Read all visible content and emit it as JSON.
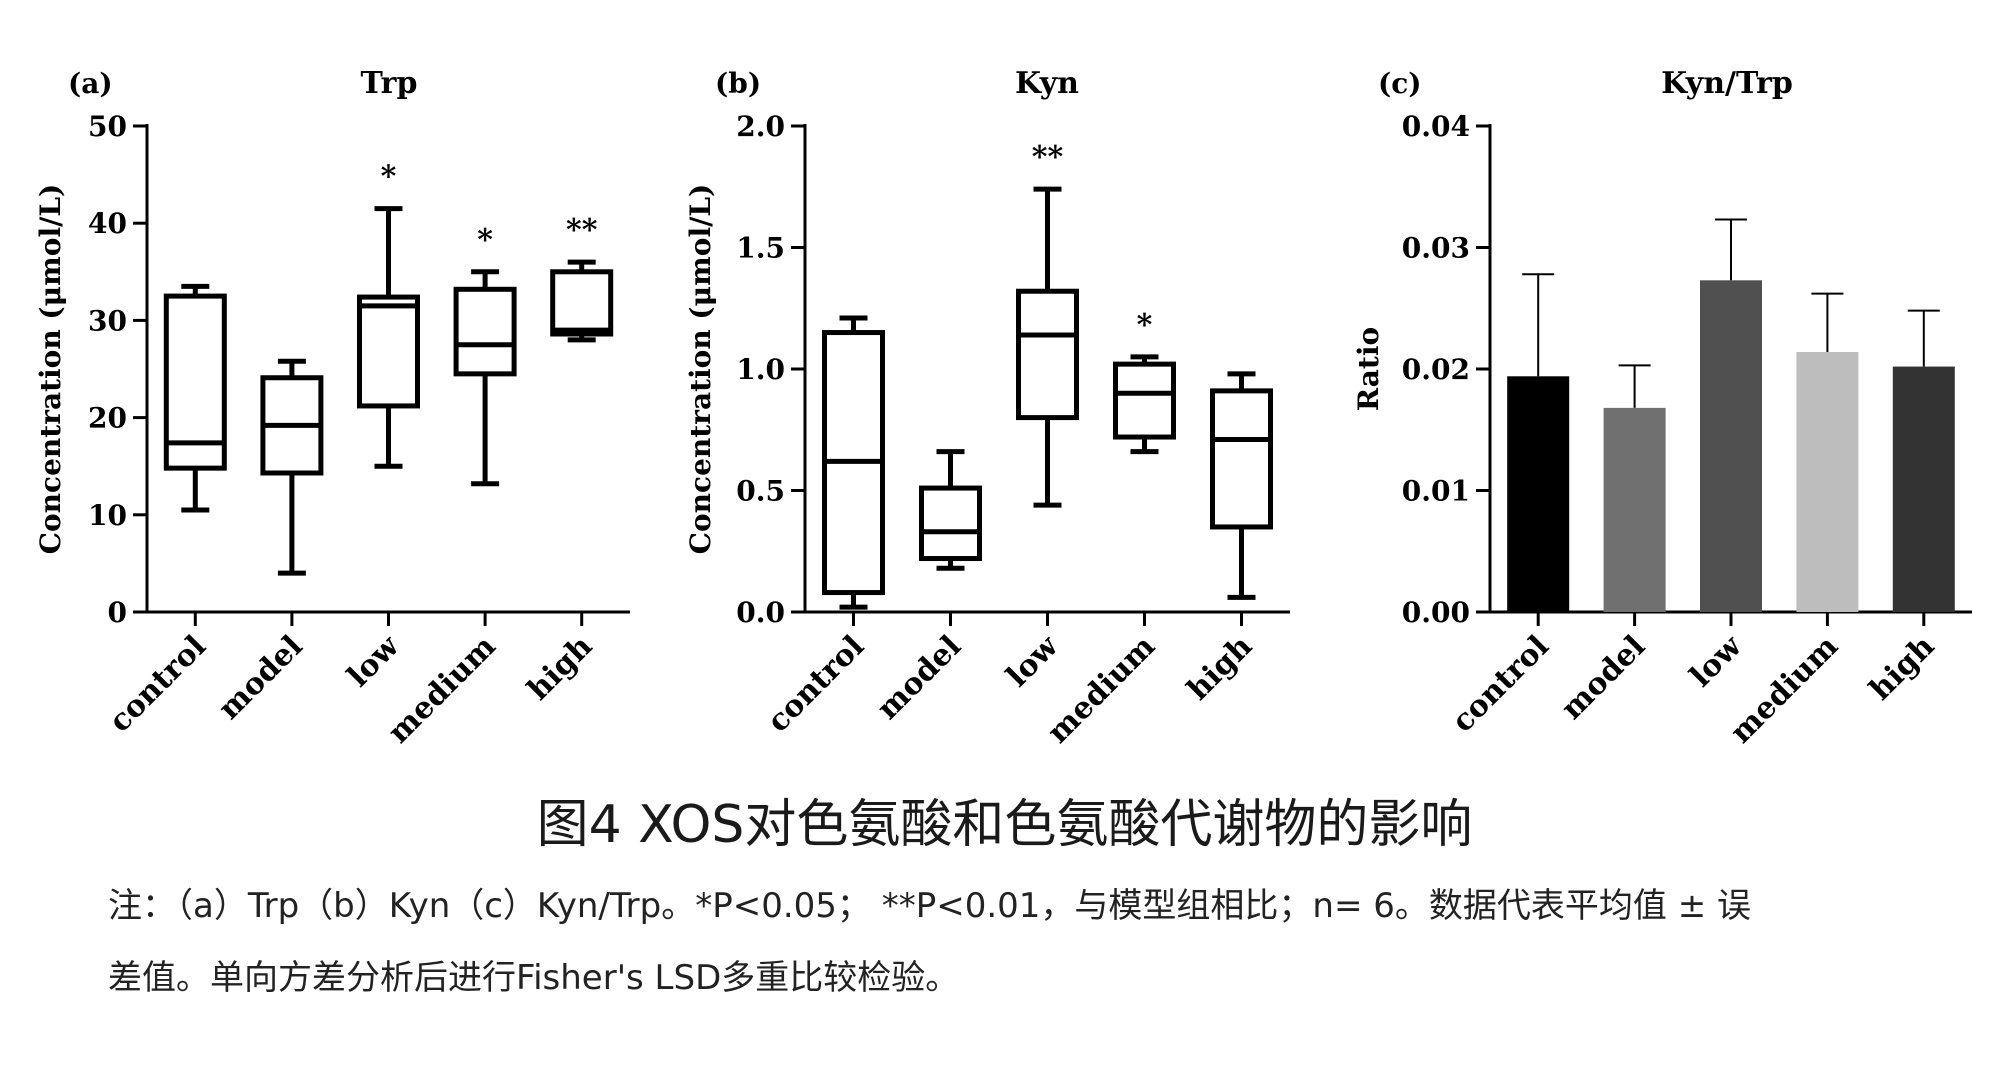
{
  "chart_data": [
    {
      "type": "box",
      "panel_label": "(a)",
      "title": "Trp",
      "ylabel": "Concentration (μmol/L)",
      "ylim": [
        0,
        50
      ],
      "yticks": [
        0,
        10,
        20,
        30,
        40,
        50
      ],
      "categories": [
        "control",
        "model",
        "low",
        "medium",
        "high"
      ],
      "boxes": [
        {
          "min": 10.5,
          "q1": 14.8,
          "median": 17.4,
          "q3": 32.5,
          "max": 33.5
        },
        {
          "min": 4.0,
          "q1": 14.3,
          "median": 19.2,
          "q3": 24.1,
          "max": 25.8
        },
        {
          "min": 15.0,
          "q1": 21.2,
          "median": 31.5,
          "q3": 32.4,
          "max": 41.5
        },
        {
          "min": 13.2,
          "q1": 24.5,
          "median": 27.5,
          "q3": 33.2,
          "max": 35.0
        },
        {
          "min": 28.0,
          "q1": 28.6,
          "median": 29.0,
          "q3": 35.0,
          "max": 36.0
        }
      ],
      "annotations": [
        "",
        "",
        "*",
        "*",
        "**"
      ]
    },
    {
      "type": "box",
      "panel_label": "(b)",
      "title": "Kyn",
      "ylabel": "Concentration (μmol/L)",
      "ylim": [
        0,
        2.0
      ],
      "yticks": [
        "0.0",
        "0.5",
        "1.0",
        "1.5",
        "2.0"
      ],
      "categories": [
        "control",
        "model",
        "low",
        "medium",
        "high"
      ],
      "boxes": [
        {
          "min": 0.02,
          "q1": 0.08,
          "median": 0.62,
          "q3": 1.15,
          "max": 1.21
        },
        {
          "min": 0.18,
          "q1": 0.22,
          "median": 0.33,
          "q3": 0.51,
          "max": 0.66
        },
        {
          "min": 0.44,
          "q1": 0.8,
          "median": 1.14,
          "q3": 1.32,
          "max": 1.74
        },
        {
          "min": 0.66,
          "q1": 0.72,
          "median": 0.9,
          "q3": 1.02,
          "max": 1.05
        },
        {
          "min": 0.06,
          "q1": 0.35,
          "median": 0.71,
          "q3": 0.91,
          "max": 0.98
        }
      ],
      "annotations": [
        "",
        "",
        "**",
        "*",
        ""
      ]
    },
    {
      "type": "bar",
      "panel_label": "(c)",
      "title": "Kyn/Trp",
      "ylabel": "Ratio",
      "ylim": [
        0,
        0.04
      ],
      "yticks": [
        "0.00",
        "0.01",
        "0.02",
        "0.03",
        "0.04"
      ],
      "categories": [
        "control",
        "model",
        "low",
        "medium",
        "high"
      ],
      "values": [
        0.0194,
        0.0168,
        0.0273,
        0.0214,
        0.0202
      ],
      "error": [
        0.0084,
        0.0035,
        0.005,
        0.0048,
        0.0046
      ],
      "colors": [
        "#000000",
        "#707070",
        "#505050",
        "#bdbdbd",
        "#333333"
      ]
    }
  ],
  "caption": {
    "title": "图4 XOS对色氨酸和色氨酸代谢物的影响",
    "note_line1": "注：（a）Trp（b）Kyn（c）Kyn/Trp。*P<0.05； **P<0.01，与模型组相比；n= 6。数据代表平均值 ± 误",
    "note_line2": "差值。单向方差分析后进行Fisher's LSD多重比较检验。"
  }
}
